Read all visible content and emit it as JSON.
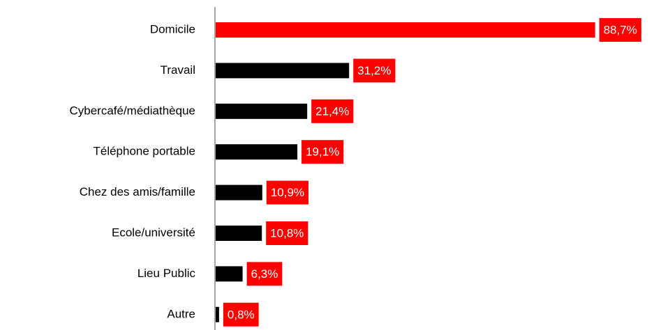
{
  "chart_data": {
    "type": "hbar",
    "categories": [
      "Domicile",
      "Travail",
      "Cybercafé/médiathèque",
      "Téléphone portable",
      "Chez des amis/famille",
      "Ecole/université",
      "Lieu Public",
      "Autre"
    ],
    "values": [
      88.7,
      31.2,
      21.4,
      19.1,
      10.9,
      10.8,
      6.3,
      0.8
    ],
    "value_labels": [
      "88,7%",
      "31,2%",
      "21,4%",
      "19,1%",
      "10,9%",
      "10,8%",
      "6,3%",
      "0,8%"
    ],
    "colors": [
      "#ff0000",
      "#000000",
      "#000000",
      "#000000",
      "#000000",
      "#000000",
      "#000000",
      "#000000"
    ],
    "label_box_color": "#ff0000",
    "xlim": [
      0,
      100
    ]
  }
}
